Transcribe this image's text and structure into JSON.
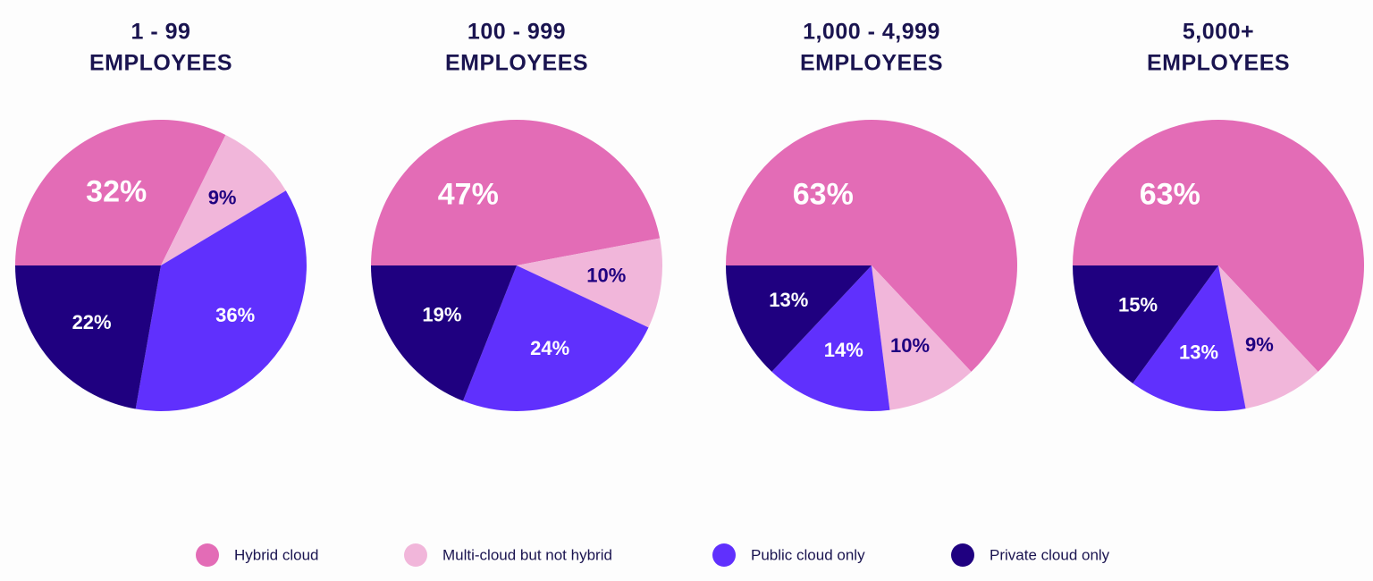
{
  "colors": {
    "hybrid": "#e36cb6",
    "multi": "#f1b6da",
    "public": "#6030fd",
    "private": "#1f0080",
    "title": "#1a1450",
    "legend_text": "#1a1450"
  },
  "legend": [
    {
      "key": "hybrid",
      "label": "Hybrid cloud"
    },
    {
      "key": "multi",
      "label": "Multi-cloud but not hybrid"
    },
    {
      "key": "public",
      "label": "Public cloud only"
    },
    {
      "key": "private",
      "label": "Private cloud only"
    }
  ],
  "chart_data": [
    {
      "type": "pie",
      "title_lines": [
        "1 - 99",
        "EMPLOYEES"
      ],
      "slices": [
        {
          "key": "hybrid",
          "label": "32%",
          "value": 32
        },
        {
          "key": "multi",
          "label": "9%",
          "value": 9
        },
        {
          "key": "public",
          "label": "36%",
          "value": 36
        },
        {
          "key": "private",
          "label": "22%",
          "value": 22
        }
      ]
    },
    {
      "type": "pie",
      "title_lines": [
        "100 - 999",
        "EMPLOYEES"
      ],
      "slices": [
        {
          "key": "hybrid",
          "label": "47%",
          "value": 47
        },
        {
          "key": "multi",
          "label": "10%",
          "value": 10
        },
        {
          "key": "public",
          "label": "24%",
          "value": 24
        },
        {
          "key": "private",
          "label": "19%",
          "value": 19
        }
      ]
    },
    {
      "type": "pie",
      "title_lines": [
        "1,000 - 4,999",
        "EMPLOYEES"
      ],
      "slices": [
        {
          "key": "hybrid",
          "label": "63%",
          "value": 63
        },
        {
          "key": "multi",
          "label": "10%",
          "value": 10
        },
        {
          "key": "public",
          "label": "14%",
          "value": 14
        },
        {
          "key": "private",
          "label": "13%",
          "value": 13
        }
      ]
    },
    {
      "type": "pie",
      "title_lines": [
        "5,000+",
        "EMPLOYEES"
      ],
      "slices": [
        {
          "key": "hybrid",
          "label": "63%",
          "value": 63
        },
        {
          "key": "multi",
          "label": "9%",
          "value": 9
        },
        {
          "key": "public",
          "label": "13%",
          "value": 13
        },
        {
          "key": "private",
          "label": "15%",
          "value": 15
        }
      ]
    }
  ]
}
